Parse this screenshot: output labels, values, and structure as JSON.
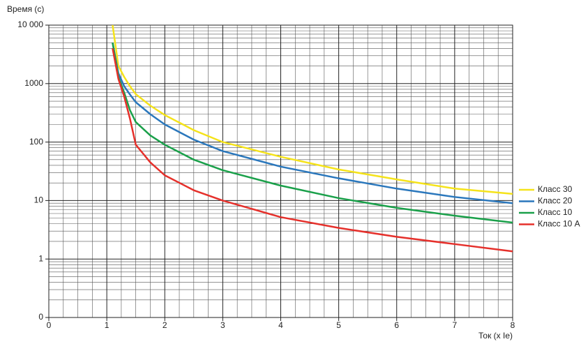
{
  "chart_data": {
    "type": "line",
    "y_label": "Время (с)",
    "x_label": "Ток (x Ie)",
    "x": [
      1.1,
      1.2,
      1.3,
      1.4,
      1.5,
      1.75,
      2,
      2.5,
      3,
      4,
      5,
      6,
      7,
      8
    ],
    "series": [
      {
        "name": "Класс 30",
        "color": "#f5e31a",
        "values": [
          10000,
          2000,
          1300,
          900,
          660,
          420,
          290,
          160,
          100,
          56,
          34,
          23,
          16,
          13
        ]
      },
      {
        "name": "Класс 20",
        "color": "#2a77bc",
        "values": [
          5000,
          1500,
          900,
          650,
          480,
          300,
          200,
          110,
          70,
          38,
          24,
          16,
          11.5,
          9
        ]
      },
      {
        "name": "Класс 10",
        "color": "#1aa04a",
        "values": [
          5000,
          1300,
          700,
          350,
          220,
          130,
          90,
          50,
          33,
          18,
          11,
          7.5,
          5.5,
          4.2
        ]
      },
      {
        "name": "Класс 10 A",
        "color": "#e5302b",
        "values": [
          4000,
          1200,
          600,
          250,
          90,
          45,
          27,
          15,
          10,
          5.2,
          3.4,
          2.4,
          1.8,
          1.35
        ]
      }
    ],
    "xlim": [
      0,
      8
    ],
    "xticks": [
      0,
      1,
      2,
      3,
      4,
      5,
      6,
      7,
      8
    ],
    "ylim": [
      0.1,
      10000
    ],
    "y_log": true,
    "yticks": [
      {
        "value": 0.1,
        "label": "0"
      },
      1,
      10,
      100,
      1000,
      {
        "value": 10000,
        "label": "10 000"
      }
    ],
    "grid": true,
    "legend": "right"
  }
}
